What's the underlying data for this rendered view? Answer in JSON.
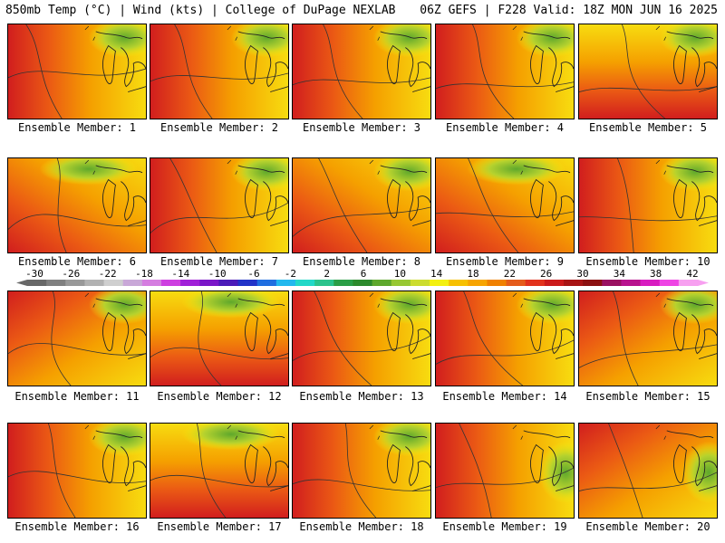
{
  "header": {
    "left": "850mb Temp (°C) | Wind (kts) | College of DuPage NEXLAB",
    "right": "06Z GEFS | F228 Valid: 18Z MON JUN 16 2025"
  },
  "members": [
    {
      "label": "Ensemble Member: 1",
      "hot": "west",
      "cool": "northeast"
    },
    {
      "label": "Ensemble Member: 2",
      "hot": "west",
      "cool": "northeast"
    },
    {
      "label": "Ensemble Member: 3",
      "hot": "west",
      "cool": "northeast"
    },
    {
      "label": "Ensemble Member: 4",
      "hot": "west",
      "cool": "northeast"
    },
    {
      "label": "Ensemble Member: 5",
      "hot": "south",
      "cool": "northeast"
    },
    {
      "label": "Ensemble Member: 6",
      "hot": "southwest",
      "cool": "north"
    },
    {
      "label": "Ensemble Member: 7",
      "hot": "west",
      "cool": "northeast"
    },
    {
      "label": "Ensemble Member: 8",
      "hot": "southwest",
      "cool": "northeast"
    },
    {
      "label": "Ensemble Member: 9",
      "hot": "southwest",
      "cool": "north"
    },
    {
      "label": "Ensemble Member: 10",
      "hot": "west",
      "cool": "northeast"
    },
    {
      "label": "Ensemble Member: 11",
      "hot": "northwest",
      "cool": "northeast"
    },
    {
      "label": "Ensemble Member: 12",
      "hot": "south",
      "cool": "north"
    },
    {
      "label": "Ensemble Member: 13",
      "hot": "west",
      "cool": "northeast"
    },
    {
      "label": "Ensemble Member: 14",
      "hot": "west",
      "cool": "northeast"
    },
    {
      "label": "Ensemble Member: 15",
      "hot": "northwest",
      "cool": "northeast"
    },
    {
      "label": "Ensemble Member: 16",
      "hot": "west",
      "cool": "northeast"
    },
    {
      "label": "Ensemble Member: 17",
      "hot": "south",
      "cool": "north"
    },
    {
      "label": "Ensemble Member: 18",
      "hot": "west",
      "cool": "northeast"
    },
    {
      "label": "Ensemble Member: 19",
      "hot": "west",
      "cool": "east"
    },
    {
      "label": "Ensemble Member: 20",
      "hot": "northwest",
      "cool": "east"
    }
  ],
  "colorbar": {
    "labels": [
      "-30",
      "-26",
      "-22",
      "-18",
      "-14",
      "-10",
      "-6",
      "-2",
      "2",
      "6",
      "10",
      "14",
      "18",
      "22",
      "26",
      "30",
      "34",
      "38",
      "42"
    ],
    "colors": [
      "#686868",
      "#808080",
      "#999999",
      "#b2b2b2",
      "#cfcfcf",
      "#c9a8d8",
      "#d57de0",
      "#cd3fe0",
      "#a020d8",
      "#7a16c8",
      "#4b1bb8",
      "#2233c8",
      "#1f6ee0",
      "#22b8ee",
      "#22d8c8",
      "#2bc38c",
      "#2a9e46",
      "#2c8a2c",
      "#5ea82c",
      "#98c832",
      "#ccdc2e",
      "#f3f010",
      "#f7c000",
      "#f7a400",
      "#f08000",
      "#e55b1a",
      "#e2321c",
      "#cc1a1a",
      "#a81414",
      "#8c1010",
      "#9a1060",
      "#b8128e",
      "#d81cc0",
      "#ee44e4",
      "#f7a0f0"
    ]
  }
}
